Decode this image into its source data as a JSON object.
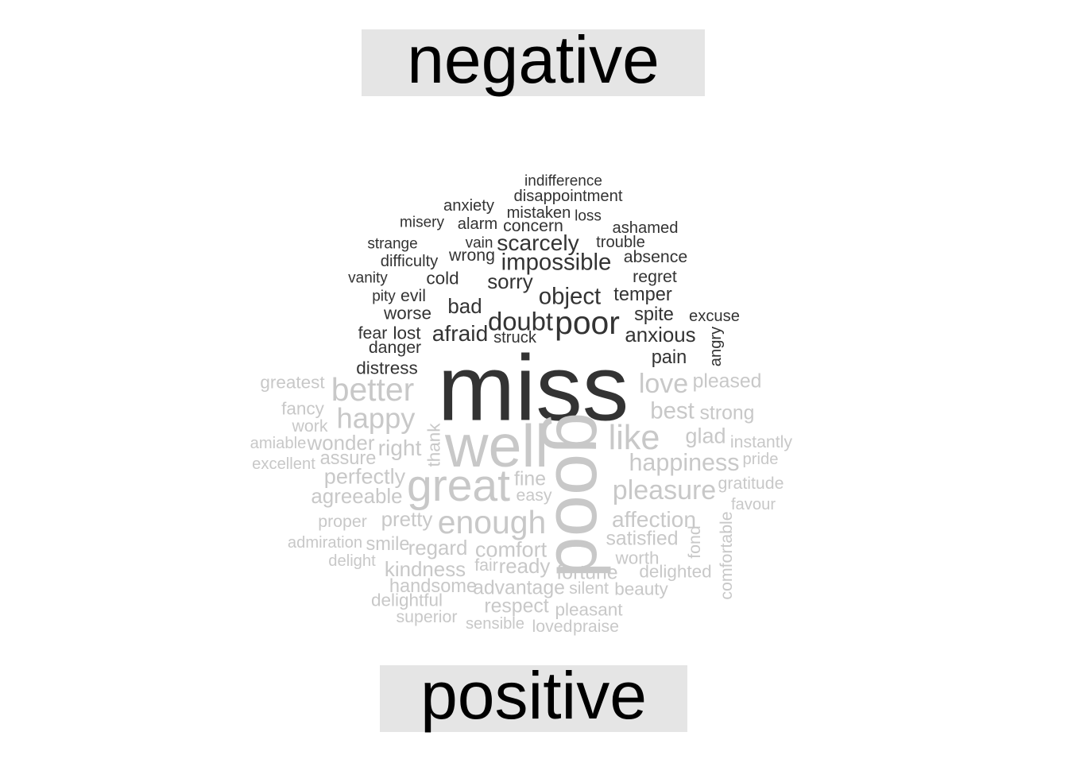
{
  "chart_data": {
    "type": "wordcloud",
    "groups": [
      {
        "name": "negative",
        "color": "#333333"
      },
      {
        "name": "positive",
        "color": "#c8c8c8"
      }
    ],
    "words": [
      {
        "text": "miss",
        "group": "negative",
        "weight": 100
      },
      {
        "text": "poor",
        "group": "negative",
        "weight": 34
      },
      {
        "text": "doubt",
        "group": "negative",
        "weight": 27
      },
      {
        "text": "object",
        "group": "negative",
        "weight": 24
      },
      {
        "text": "impossible",
        "group": "negative",
        "weight": 24
      },
      {
        "text": "afraid",
        "group": "negative",
        "weight": 23
      },
      {
        "text": "scarcely",
        "group": "negative",
        "weight": 23
      },
      {
        "text": "anxious",
        "group": "negative",
        "weight": 21
      },
      {
        "text": "bad",
        "group": "negative",
        "weight": 21
      },
      {
        "text": "sorry",
        "group": "negative",
        "weight": 21
      },
      {
        "text": "spite",
        "group": "negative",
        "weight": 19
      },
      {
        "text": "pain",
        "group": "negative",
        "weight": 19
      },
      {
        "text": "temper",
        "group": "negative",
        "weight": 19
      },
      {
        "text": "worse",
        "group": "negative",
        "weight": 18
      },
      {
        "text": "cold",
        "group": "negative",
        "weight": 18
      },
      {
        "text": "distress",
        "group": "negative",
        "weight": 18
      },
      {
        "text": "lost",
        "group": "negative",
        "weight": 18
      },
      {
        "text": "absence",
        "group": "negative",
        "weight": 17
      },
      {
        "text": "regret",
        "group": "negative",
        "weight": 17
      },
      {
        "text": "wrong",
        "group": "negative",
        "weight": 17
      },
      {
        "text": "evil",
        "group": "negative",
        "weight": 17
      },
      {
        "text": "danger",
        "group": "negative",
        "weight": 17
      },
      {
        "text": "concern",
        "group": "negative",
        "weight": 17
      },
      {
        "text": "fear",
        "group": "negative",
        "weight": 17
      },
      {
        "text": "ashamed",
        "group": "negative",
        "weight": 16
      },
      {
        "text": "trouble",
        "group": "negative",
        "weight": 16
      },
      {
        "text": "difficulty",
        "group": "negative",
        "weight": 16
      },
      {
        "text": "excuse",
        "group": "negative",
        "weight": 16
      },
      {
        "text": "disappointment",
        "group": "negative",
        "weight": 16
      },
      {
        "text": "mistaken",
        "group": "negative",
        "weight": 16
      },
      {
        "text": "struck",
        "group": "negative",
        "weight": 16
      },
      {
        "text": "alarm",
        "group": "negative",
        "weight": 16
      },
      {
        "text": "anxiety",
        "group": "negative",
        "weight": 16
      },
      {
        "text": "angry",
        "group": "negative",
        "weight": 16
      },
      {
        "text": "indifference",
        "group": "negative",
        "weight": 15
      },
      {
        "text": "misery",
        "group": "negative",
        "weight": 15
      },
      {
        "text": "strange",
        "group": "negative",
        "weight": 15
      },
      {
        "text": "vain",
        "group": "negative",
        "weight": 15
      },
      {
        "text": "loss",
        "group": "negative",
        "weight": 15
      },
      {
        "text": "vanity",
        "group": "negative",
        "weight": 15
      },
      {
        "text": "pity",
        "group": "negative",
        "weight": 15
      },
      {
        "text": "good",
        "group": "positive",
        "weight": 80
      },
      {
        "text": "well",
        "group": "positive",
        "weight": 64
      },
      {
        "text": "great",
        "group": "positive",
        "weight": 48
      },
      {
        "text": "like",
        "group": "positive",
        "weight": 36
      },
      {
        "text": "better",
        "group": "positive",
        "weight": 34
      },
      {
        "text": "enough",
        "group": "positive",
        "weight": 34
      },
      {
        "text": "happy",
        "group": "positive",
        "weight": 30
      },
      {
        "text": "love",
        "group": "positive",
        "weight": 28
      },
      {
        "text": "pleasure",
        "group": "positive",
        "weight": 28
      },
      {
        "text": "happiness",
        "group": "positive",
        "weight": 25
      },
      {
        "text": "best",
        "group": "positive",
        "weight": 24
      },
      {
        "text": "affection",
        "group": "positive",
        "weight": 23
      },
      {
        "text": "right",
        "group": "positive",
        "weight": 23
      },
      {
        "text": "perfectly",
        "group": "positive",
        "weight": 22
      },
      {
        "text": "glad",
        "group": "positive",
        "weight": 22
      },
      {
        "text": "comfort",
        "group": "positive",
        "weight": 22
      },
      {
        "text": "agreeable",
        "group": "positive",
        "weight": 21
      },
      {
        "text": "wonder",
        "group": "positive",
        "weight": 21
      },
      {
        "text": "pretty",
        "group": "positive",
        "weight": 21
      },
      {
        "text": "kindness",
        "group": "positive",
        "weight": 21
      },
      {
        "text": "regard",
        "group": "positive",
        "weight": 21
      },
      {
        "text": "ready",
        "group": "positive",
        "weight": 21
      },
      {
        "text": "fine",
        "group": "positive",
        "weight": 20
      },
      {
        "text": "strong",
        "group": "positive",
        "weight": 20
      },
      {
        "text": "satisfied",
        "group": "positive",
        "weight": 20
      },
      {
        "text": "fortune",
        "group": "positive",
        "weight": 20
      },
      {
        "text": "advantage",
        "group": "positive",
        "weight": 20
      },
      {
        "text": "pleased",
        "group": "positive",
        "weight": 20
      },
      {
        "text": "respect",
        "group": "positive",
        "weight": 20
      },
      {
        "text": "smile",
        "group": "positive",
        "weight": 19
      },
      {
        "text": "handsome",
        "group": "positive",
        "weight": 19
      },
      {
        "text": "assure",
        "group": "positive",
        "weight": 19
      },
      {
        "text": "greatest",
        "group": "positive",
        "weight": 18
      },
      {
        "text": "fancy",
        "group": "positive",
        "weight": 18
      },
      {
        "text": "thank",
        "group": "positive",
        "weight": 18
      },
      {
        "text": "worth",
        "group": "positive",
        "weight": 18
      },
      {
        "text": "delighted",
        "group": "positive",
        "weight": 18
      },
      {
        "text": "delightful",
        "group": "positive",
        "weight": 18
      },
      {
        "text": "beauty",
        "group": "positive",
        "weight": 18
      },
      {
        "text": "pleasant",
        "group": "positive",
        "weight": 18
      },
      {
        "text": "easy",
        "group": "positive",
        "weight": 17
      },
      {
        "text": "work",
        "group": "positive",
        "weight": 17
      },
      {
        "text": "proper",
        "group": "positive",
        "weight": 17
      },
      {
        "text": "instantly",
        "group": "positive",
        "weight": 17
      },
      {
        "text": "gratitude",
        "group": "positive",
        "weight": 17
      },
      {
        "text": "fond",
        "group": "positive",
        "weight": 17
      },
      {
        "text": "comfortable",
        "group": "positive",
        "weight": 17
      },
      {
        "text": "silent",
        "group": "positive",
        "weight": 17
      },
      {
        "text": "fair",
        "group": "positive",
        "weight": 17
      },
      {
        "text": "superior",
        "group": "positive",
        "weight": 17
      },
      {
        "text": "loved",
        "group": "positive",
        "weight": 17
      },
      {
        "text": "praise",
        "group": "positive",
        "weight": 17
      },
      {
        "text": "sensible",
        "group": "positive",
        "weight": 16
      },
      {
        "text": "pride",
        "group": "positive",
        "weight": 16
      },
      {
        "text": "favour",
        "group": "positive",
        "weight": 16
      },
      {
        "text": "amiable",
        "group": "positive",
        "weight": 16
      },
      {
        "text": "excellent",
        "group": "positive",
        "weight": 16
      },
      {
        "text": "admiration",
        "group": "positive",
        "weight": 16
      },
      {
        "text": "delight",
        "group": "positive",
        "weight": 16
      }
    ]
  }
}
